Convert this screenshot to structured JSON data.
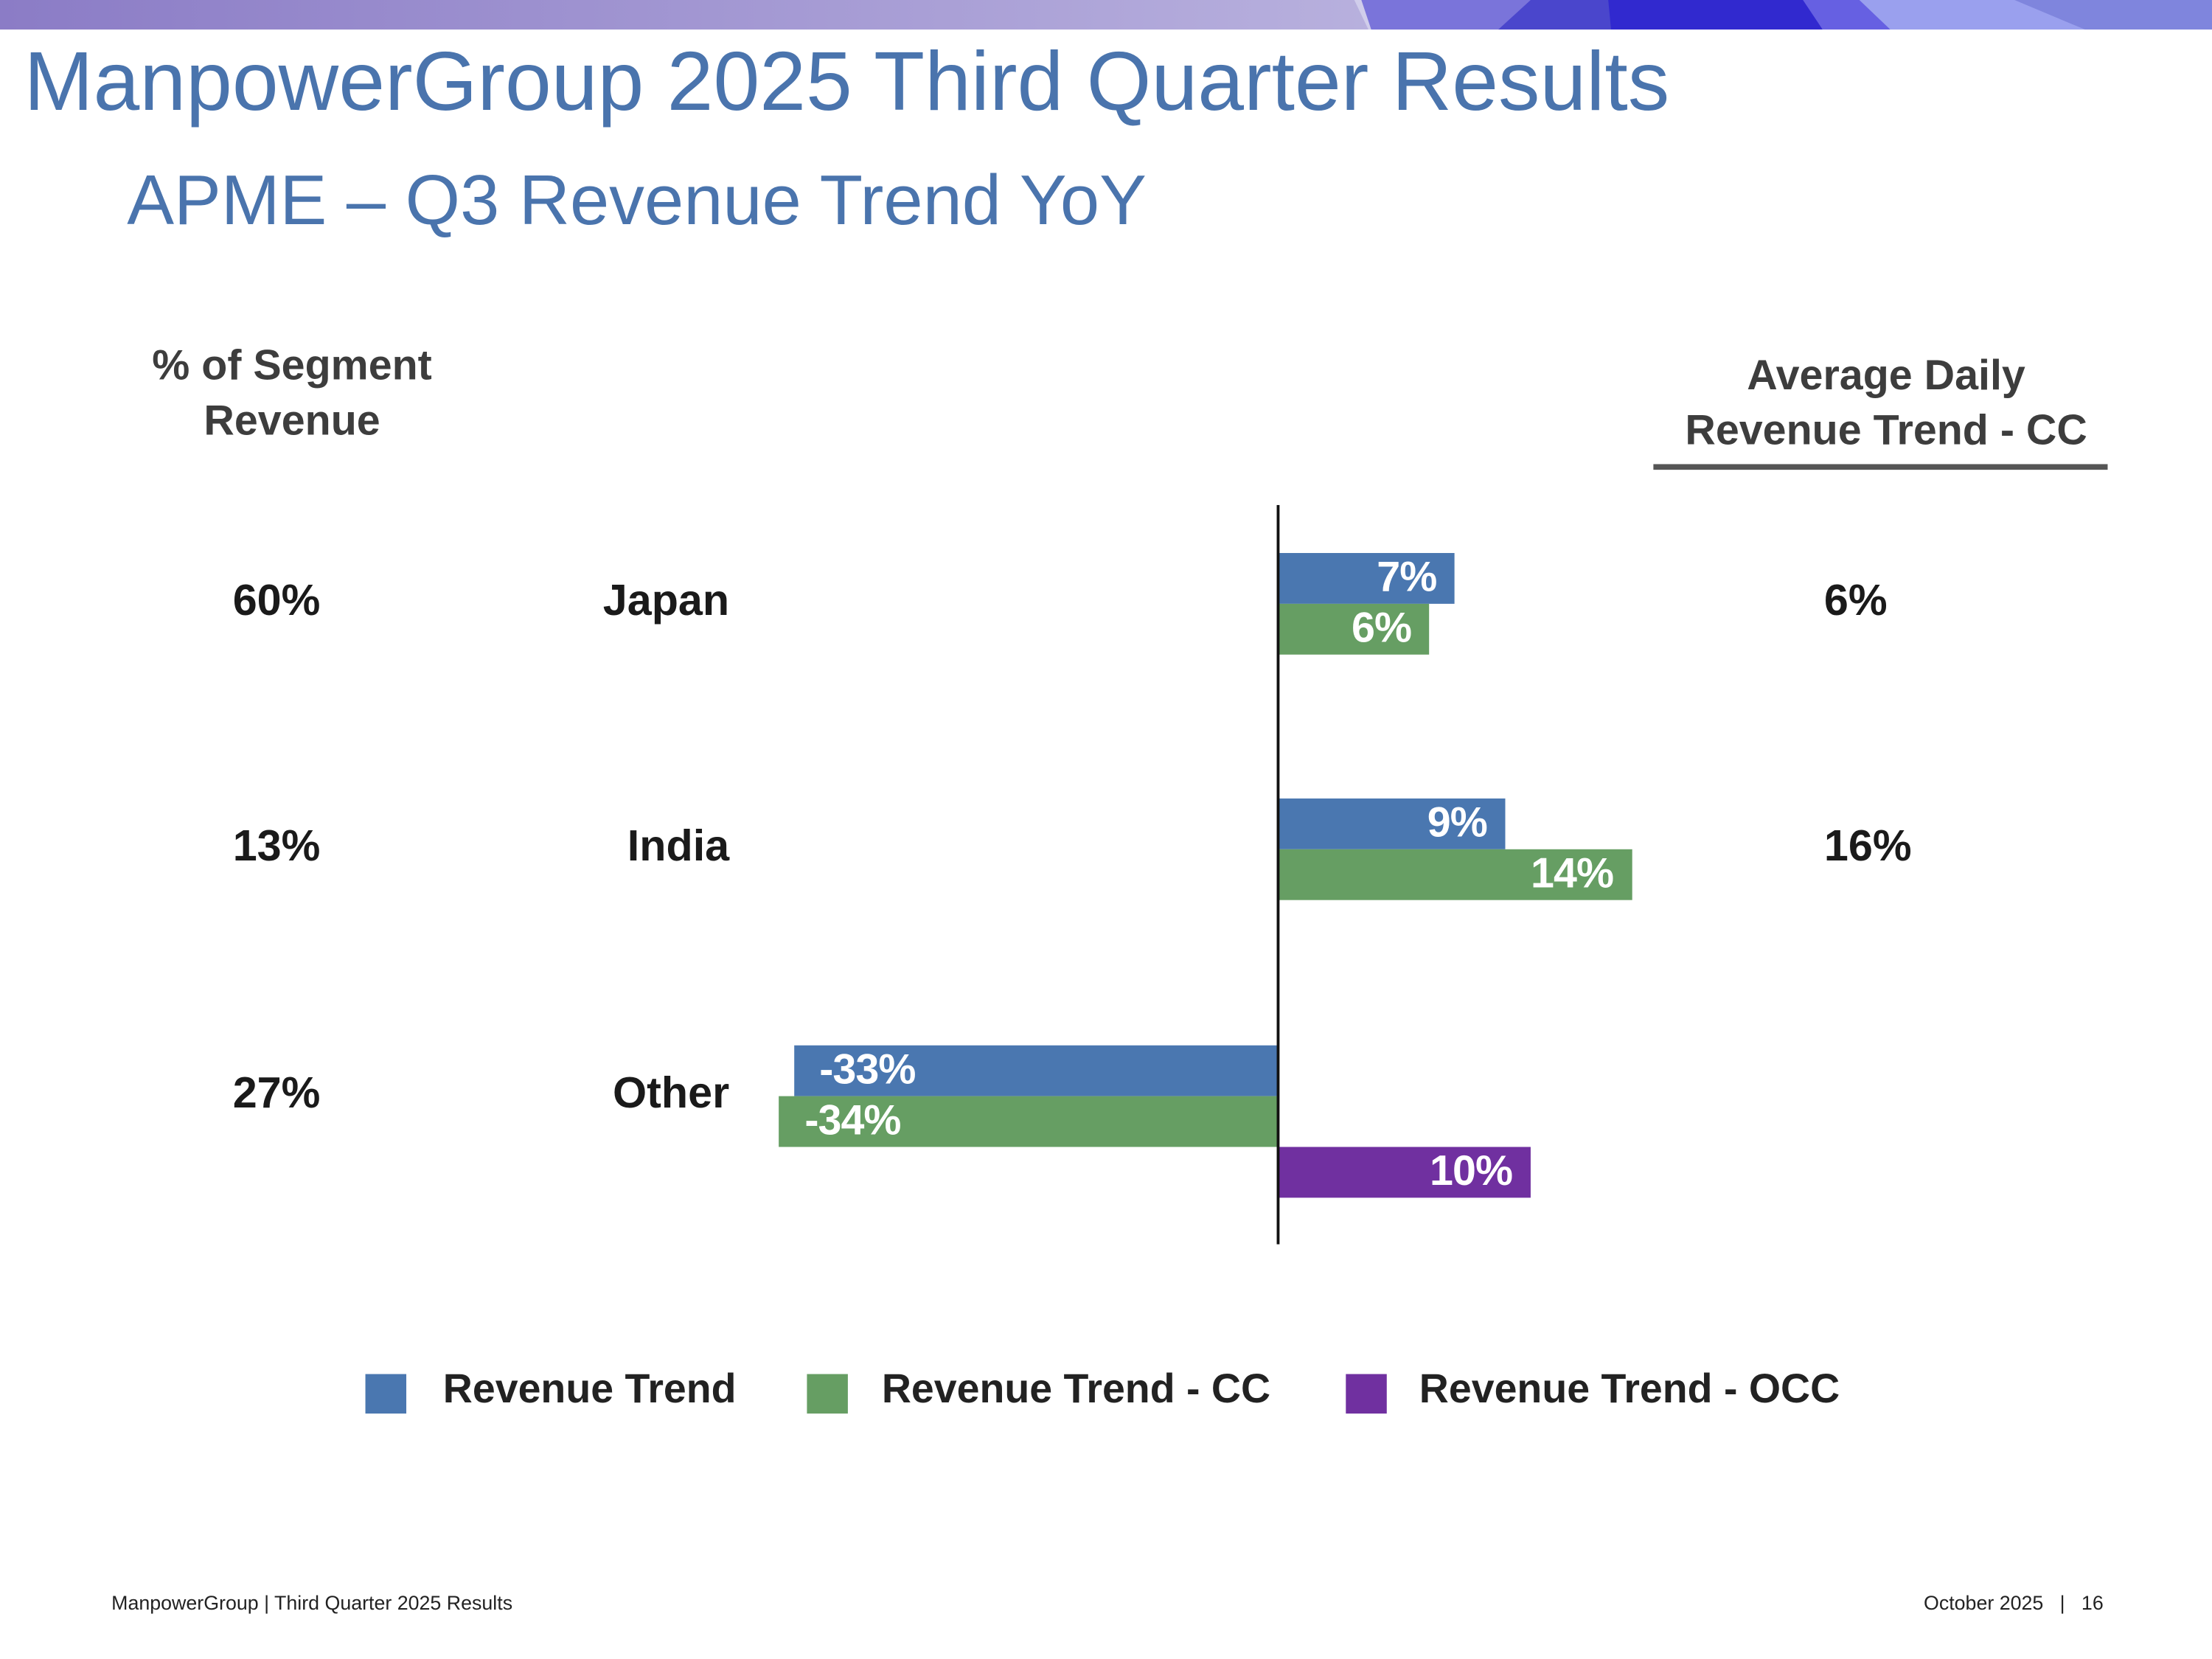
{
  "header": {
    "title": "ManpowerGroup 2025 Third Quarter Results",
    "subtitle": "APME – Q3 Revenue Trend YoY"
  },
  "columns": {
    "left": [
      "% of Segment",
      "Revenue"
    ],
    "right": [
      "Average Daily",
      "Revenue Trend - CC"
    ]
  },
  "colors": {
    "revenue_trend": "#4a77b0",
    "revenue_trend_cc": "#669e63",
    "revenue_trend_occ": "#7030a0",
    "title": "#4a74ad"
  },
  "chart_data": {
    "type": "bar",
    "orientation": "horizontal",
    "categories": [
      "Japan",
      "India",
      "Other"
    ],
    "segment_share": [
      "60%",
      "13%",
      "27%"
    ],
    "avg_daily_revenue_trend_cc": [
      "6%",
      "16%",
      ""
    ],
    "series": [
      {
        "name": "Revenue Trend",
        "values": [
          7,
          9,
          -33
        ],
        "labels": [
          "7%",
          "9%",
          "-33%"
        ]
      },
      {
        "name": "Revenue Trend - CC",
        "values": [
          6,
          14,
          -34
        ],
        "labels": [
          "6%",
          "14%",
          "-34%"
        ]
      },
      {
        "name": "Revenue Trend - OCC",
        "values": [
          null,
          null,
          10
        ],
        "labels": [
          "",
          "",
          "10%"
        ]
      }
    ],
    "legend": "bottom",
    "grid": false
  },
  "footer": {
    "left": "ManpowerGroup  |  Third Quarter 2025 Results",
    "right": "October 2025   |   16"
  }
}
